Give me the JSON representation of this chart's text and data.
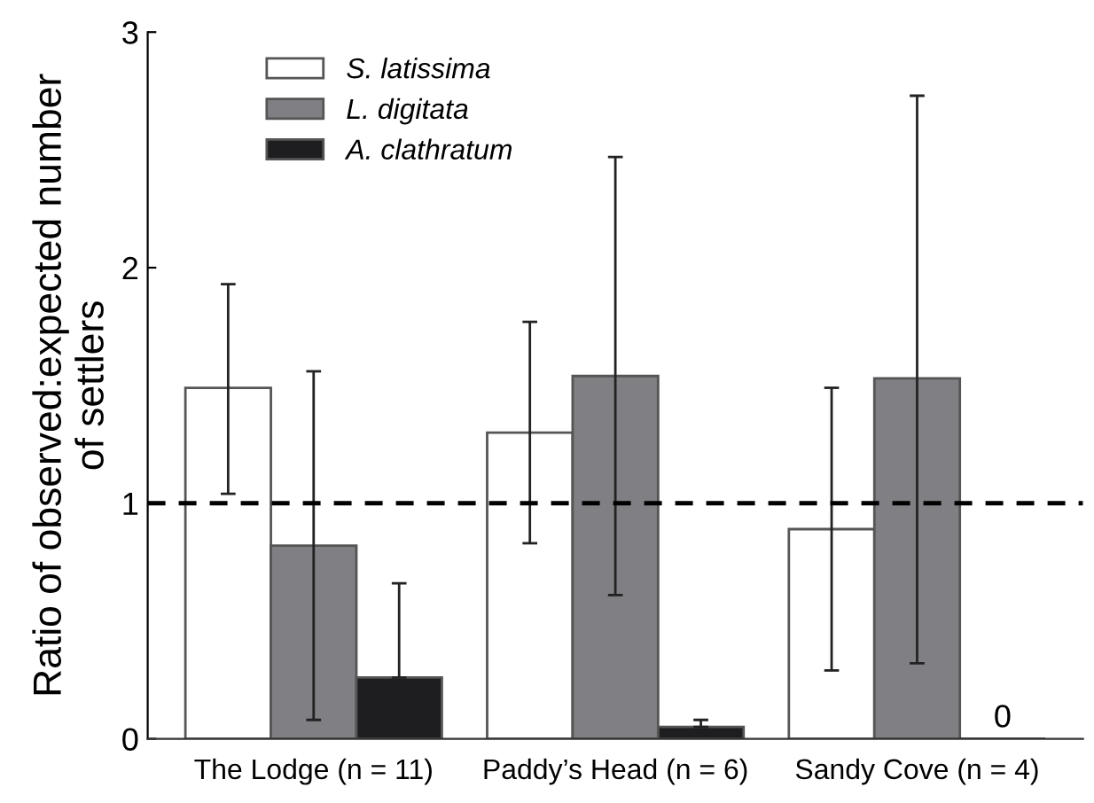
{
  "chart_data": {
    "type": "bar",
    "ylabel": "Ratio of observed:expected number\nof settlers",
    "categories": [
      "The Lodge (n = 11)",
      "Paddy’s Head (n = 6)",
      "Sandy Cove (n = 4)"
    ],
    "series": [
      {
        "name": "S. latissima",
        "color": "#ffffff",
        "values": [
          1.49,
          1.3,
          0.89
        ],
        "errors": [
          [
            1.04,
            1.93
          ],
          [
            0.83,
            1.77
          ],
          [
            0.29,
            1.49
          ]
        ]
      },
      {
        "name": "L. digitata",
        "color": "#808084",
        "values": [
          0.82,
          1.54,
          1.53
        ],
        "errors": [
          [
            0.08,
            1.56
          ],
          [
            0.61,
            2.47
          ],
          [
            0.32,
            2.73
          ]
        ]
      },
      {
        "name": "A. clathratum",
        "color": "#1e1e20",
        "values": [
          0.26,
          0.05,
          0
        ],
        "errors": [
          [
            0.26,
            0.66
          ],
          [
            0.05,
            0.08
          ],
          null
        ],
        "value_labels": [
          null,
          null,
          "0"
        ]
      }
    ],
    "ylim": [
      0,
      3
    ],
    "yticks": [
      0,
      1,
      2,
      3
    ],
    "ref_lines": [
      {
        "axis": "y",
        "value": 1,
        "line_style": "dashed",
        "color": "#000000"
      }
    ],
    "legend": "top left",
    "grid": false
  }
}
